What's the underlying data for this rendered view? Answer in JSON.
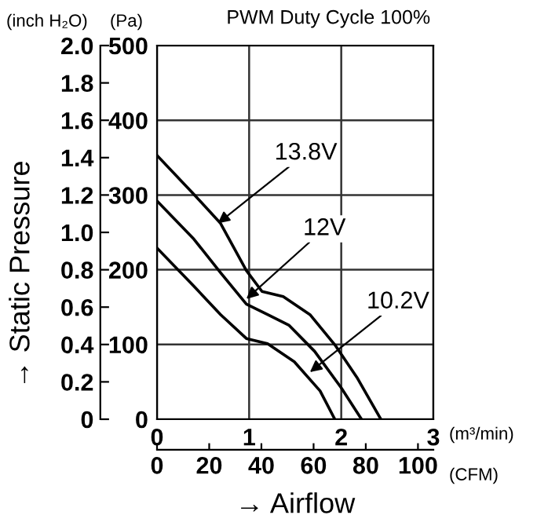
{
  "chart_data": {
    "type": "line",
    "title": "PWM Duty Cycle 100%",
    "xlabel": "(m³/min)",
    "x2label": "(CFM)",
    "ylabel": "(Pa)",
    "y2label": "(inch H₂O)",
    "xlim": [
      0,
      3
    ],
    "xticks": [
      0,
      1,
      2,
      3
    ],
    "x2lim": [
      0,
      105.9
    ],
    "x2ticks": [
      0,
      20,
      40,
      60,
      80,
      100
    ],
    "ylim": [
      0,
      500
    ],
    "yticks": [
      0,
      100,
      200,
      300,
      400,
      500
    ],
    "y2lim": [
      0,
      2.0
    ],
    "y2ticks": [
      0,
      0.2,
      0.4,
      0.6,
      0.8,
      {
        "value": 1.0,
        "label": "1.0"
      },
      1.2,
      1.4,
      1.6,
      1.8,
      {
        "value": 2.0,
        "label": "2.0"
      }
    ],
    "grid": true,
    "line_style": "solid",
    "marker": "none",
    "series": [
      {
        "color": "#000000",
        "x": [
          0,
          0.4,
          0.69,
          0.97,
          1.14,
          1.37,
          1.66,
          1.94,
          2.17,
          2.43
        ],
        "values": [
          353,
          301,
          262,
          199,
          171,
          164,
          140,
          98,
          56,
          0
        ]
      },
      {
        "color": "#000000",
        "x": [
          0,
          0.4,
          0.69,
          0.97,
          1.2,
          1.43,
          1.71,
          2.0,
          2.22
        ],
        "values": [
          292,
          241,
          196,
          154,
          140,
          126,
          91,
          42,
          0
        ]
      },
      {
        "color": "#000000",
        "x": [
          0,
          0.4,
          0.69,
          0.97,
          1.2,
          1.49,
          1.77,
          1.93
        ],
        "values": [
          229,
          178,
          140,
          108,
          101,
          77,
          38,
          0
        ]
      }
    ],
    "annotations": [
      {
        "text": "13.8V",
        "x": 0.66,
        "y": 262
      },
      {
        "text": "12V",
        "x": 0.97,
        "y": 161
      },
      {
        "text": "10.2V",
        "x": 1.66,
        "y": 63
      },
      "→ Static Pressure",
      "→ Airflow"
    ]
  }
}
